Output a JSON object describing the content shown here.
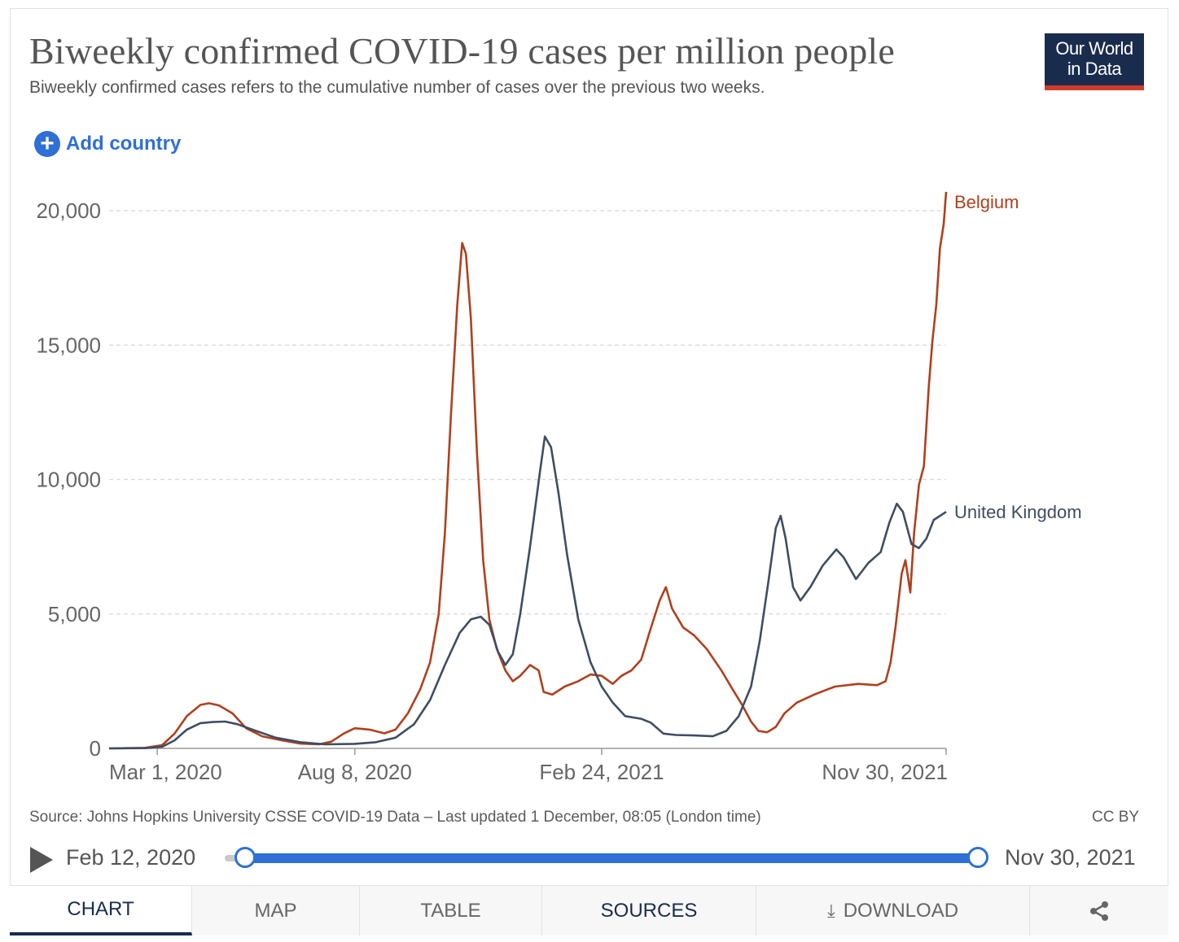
{
  "header": {
    "title": "Biweekly confirmed COVID-19 cases per million people",
    "subtitle": "Biweekly confirmed cases refers to the cumulative number of cases over the previous two weeks.",
    "logo_line1": "Our World",
    "logo_line2": "in Data"
  },
  "controls": {
    "add_country_label": "Add country",
    "add_icon": "plus-circle-icon"
  },
  "chart_data": {
    "type": "line",
    "title": "Biweekly confirmed COVID-19 cases per million people",
    "xlabel": "",
    "ylabel": "",
    "x_range": [
      "2020-01-22",
      "2021-11-30"
    ],
    "ylim": [
      0,
      20000
    ],
    "y_ticks": [
      0,
      5000,
      10000,
      15000,
      20000
    ],
    "y_tick_labels": [
      "0",
      "5,000",
      "10,000",
      "15,000",
      "20,000"
    ],
    "x_ticks": [
      "2020-03-01",
      "2020-08-08",
      "2021-02-24",
      "2021-11-30"
    ],
    "x_tick_labels": [
      "Mar 1, 2020",
      "Aug 8, 2020",
      "Feb 24, 2021",
      "Nov 30, 2021"
    ],
    "grid": "horizontal dashed",
    "legend": "inline labels at line ends",
    "series": [
      {
        "name": "Belgium",
        "color": "#b0401e",
        "points": [
          [
            "2020-01-22",
            0
          ],
          [
            "2020-02-20",
            20
          ],
          [
            "2020-03-05",
            120
          ],
          [
            "2020-03-15",
            550
          ],
          [
            "2020-03-25",
            1200
          ],
          [
            "2020-04-05",
            1620
          ],
          [
            "2020-04-12",
            1680
          ],
          [
            "2020-04-20",
            1600
          ],
          [
            "2020-05-01",
            1300
          ],
          [
            "2020-05-12",
            750
          ],
          [
            "2020-05-25",
            450
          ],
          [
            "2020-06-10",
            300
          ],
          [
            "2020-06-25",
            180
          ],
          [
            "2020-07-10",
            150
          ],
          [
            "2020-07-20",
            250
          ],
          [
            "2020-07-30",
            550
          ],
          [
            "2020-08-08",
            750
          ],
          [
            "2020-08-20",
            700
          ],
          [
            "2020-09-01",
            560
          ],
          [
            "2020-09-10",
            700
          ],
          [
            "2020-09-20",
            1300
          ],
          [
            "2020-09-30",
            2200
          ],
          [
            "2020-10-08",
            3200
          ],
          [
            "2020-10-15",
            5000
          ],
          [
            "2020-10-20",
            8000
          ],
          [
            "2020-10-25",
            12500
          ],
          [
            "2020-10-30",
            16500
          ],
          [
            "2020-11-03",
            18800
          ],
          [
            "2020-11-06",
            18400
          ],
          [
            "2020-11-10",
            16000
          ],
          [
            "2020-11-15",
            11000
          ],
          [
            "2020-11-20",
            7000
          ],
          [
            "2020-11-25",
            4800
          ],
          [
            "2020-12-01",
            3700
          ],
          [
            "2020-12-08",
            2900
          ],
          [
            "2020-12-14",
            2500
          ],
          [
            "2020-12-20",
            2700
          ],
          [
            "2020-12-28",
            3100
          ],
          [
            "2021-01-04",
            2900
          ],
          [
            "2021-01-08",
            2100
          ],
          [
            "2021-01-15",
            2000
          ],
          [
            "2021-01-25",
            2300
          ],
          [
            "2021-02-05",
            2500
          ],
          [
            "2021-02-15",
            2750
          ],
          [
            "2021-02-24",
            2700
          ],
          [
            "2021-03-05",
            2400
          ],
          [
            "2021-03-12",
            2700
          ],
          [
            "2021-03-20",
            2900
          ],
          [
            "2021-03-28",
            3300
          ],
          [
            "2021-04-05",
            4500
          ],
          [
            "2021-04-12",
            5500
          ],
          [
            "2021-04-17",
            6000
          ],
          [
            "2021-04-22",
            5200
          ],
          [
            "2021-05-01",
            4500
          ],
          [
            "2021-05-10",
            4200
          ],
          [
            "2021-05-20",
            3700
          ],
          [
            "2021-06-01",
            2900
          ],
          [
            "2021-06-10",
            2200
          ],
          [
            "2021-06-18",
            1600
          ],
          [
            "2021-06-25",
            1000
          ],
          [
            "2021-07-01",
            650
          ],
          [
            "2021-07-08",
            600
          ],
          [
            "2021-07-15",
            800
          ],
          [
            "2021-07-22",
            1300
          ],
          [
            "2021-08-01",
            1700
          ],
          [
            "2021-08-15",
            2000
          ],
          [
            "2021-09-01",
            2300
          ],
          [
            "2021-09-20",
            2400
          ],
          [
            "2021-10-05",
            2350
          ],
          [
            "2021-10-12",
            2500
          ],
          [
            "2021-10-16",
            3200
          ],
          [
            "2021-10-20",
            4500
          ],
          [
            "2021-10-25",
            6500
          ],
          [
            "2021-10-28",
            7000
          ],
          [
            "2021-11-01",
            5800
          ],
          [
            "2021-11-04",
            8000
          ],
          [
            "2021-11-08",
            9800
          ],
          [
            "2021-11-12",
            10500
          ],
          [
            "2021-11-16",
            13500
          ],
          [
            "2021-11-19",
            15200
          ],
          [
            "2021-11-22",
            16500
          ],
          [
            "2021-11-25",
            18600
          ],
          [
            "2021-11-28",
            19500
          ],
          [
            "2021-11-30",
            20700
          ]
        ]
      },
      {
        "name": "United Kingdom",
        "color": "#3f4d63",
        "points": [
          [
            "2020-01-22",
            0
          ],
          [
            "2020-02-20",
            10
          ],
          [
            "2020-03-05",
            60
          ],
          [
            "2020-03-15",
            300
          ],
          [
            "2020-03-25",
            700
          ],
          [
            "2020-04-05",
            940
          ],
          [
            "2020-04-15",
            980
          ],
          [
            "2020-04-25",
            1000
          ],
          [
            "2020-05-05",
            900
          ],
          [
            "2020-05-20",
            650
          ],
          [
            "2020-06-05",
            400
          ],
          [
            "2020-06-25",
            230
          ],
          [
            "2020-07-15",
            150
          ],
          [
            "2020-08-08",
            170
          ],
          [
            "2020-08-25",
            230
          ],
          [
            "2020-09-10",
            400
          ],
          [
            "2020-09-25",
            900
          ],
          [
            "2020-10-08",
            1800
          ],
          [
            "2020-10-20",
            3100
          ],
          [
            "2020-11-01",
            4300
          ],
          [
            "2020-11-10",
            4800
          ],
          [
            "2020-11-18",
            4900
          ],
          [
            "2020-11-25",
            4600
          ],
          [
            "2020-12-02",
            3600
          ],
          [
            "2020-12-08",
            3100
          ],
          [
            "2020-12-14",
            3500
          ],
          [
            "2020-12-20",
            5000
          ],
          [
            "2020-12-28",
            7500
          ],
          [
            "2021-01-05",
            10300
          ],
          [
            "2021-01-09",
            11600
          ],
          [
            "2021-01-14",
            11200
          ],
          [
            "2021-01-20",
            9500
          ],
          [
            "2021-01-27",
            7200
          ],
          [
            "2021-02-05",
            4800
          ],
          [
            "2021-02-15",
            3200
          ],
          [
            "2021-02-24",
            2300
          ],
          [
            "2021-03-05",
            1700
          ],
          [
            "2021-03-15",
            1200
          ],
          [
            "2021-03-28",
            1100
          ],
          [
            "2021-04-05",
            950
          ],
          [
            "2021-04-15",
            550
          ],
          [
            "2021-04-25",
            500
          ],
          [
            "2021-05-10",
            480
          ],
          [
            "2021-05-25",
            450
          ],
          [
            "2021-06-05",
            650
          ],
          [
            "2021-06-15",
            1200
          ],
          [
            "2021-06-25",
            2300
          ],
          [
            "2021-07-02",
            4000
          ],
          [
            "2021-07-09",
            6200
          ],
          [
            "2021-07-15",
            8200
          ],
          [
            "2021-07-19",
            8650
          ],
          [
            "2021-07-23",
            7800
          ],
          [
            "2021-07-29",
            6000
          ],
          [
            "2021-08-04",
            5500
          ],
          [
            "2021-08-12",
            6000
          ],
          [
            "2021-08-22",
            6800
          ],
          [
            "2021-09-02",
            7400
          ],
          [
            "2021-09-08",
            7100
          ],
          [
            "2021-09-18",
            6300
          ],
          [
            "2021-09-28",
            6900
          ],
          [
            "2021-10-08",
            7300
          ],
          [
            "2021-10-15",
            8400
          ],
          [
            "2021-10-21",
            9100
          ],
          [
            "2021-10-26",
            8800
          ],
          [
            "2021-11-02",
            7600
          ],
          [
            "2021-11-08",
            7450
          ],
          [
            "2021-11-14",
            7800
          ],
          [
            "2021-11-20",
            8500
          ],
          [
            "2021-11-30",
            8800
          ]
        ]
      }
    ]
  },
  "footer": {
    "source": "Source: Johns Hopkins University CSSE COVID-19 Data – Last updated 1 December, 08:05 (London time)",
    "license": "CC BY"
  },
  "timeline": {
    "start_label": "Feb 12, 2020",
    "end_label": "Nov 30, 2021"
  },
  "tabs": {
    "chart": "CHART",
    "map": "MAP",
    "table": "TABLE",
    "sources": "SOURCES",
    "download": "DOWNLOAD",
    "share_icon": "share-icon",
    "download_icon": "download-icon"
  }
}
